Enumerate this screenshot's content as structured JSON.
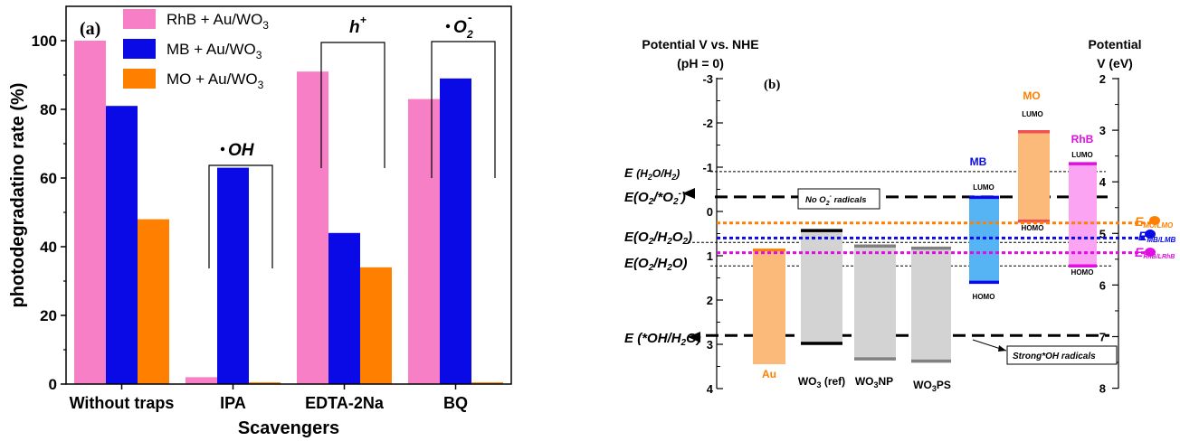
{
  "panel_a": {
    "label": "(a)",
    "ylabel": "photodegradatino rate (%)",
    "xlabel": "Scavengers",
    "annotations": [
      {
        "id": "oh",
        "text": "OH"
      },
      {
        "id": "h",
        "text": "h",
        "sup": "+"
      },
      {
        "id": "o2",
        "text": "O",
        "sub": "2",
        "sup": "-"
      }
    ]
  },
  "panel_b": {
    "label": "(b)",
    "left_axis_title_1": "Potential V vs. NHE",
    "left_axis_title_2": "(pH = 0)",
    "right_axis_title_1": "Potential",
    "right_axis_title_2": "V (eV)",
    "left_ticks": [
      "-3",
      "-2",
      "-1",
      "0",
      "1",
      "2",
      "3",
      "4"
    ],
    "right_ticks": [
      "2",
      "3",
      "4",
      "5",
      "6",
      "7",
      "8"
    ],
    "ref_labels": {
      "h2o_h2": {
        "pre": "E ",
        "main": "(H",
        "s1": "2",
        "mid": "O/H",
        "s2": "2",
        "post": ")"
      },
      "o2_o2r": {
        "pre": "E",
        "main": "(O",
        "s1": "2",
        "mid": "/*O",
        "s2": "2",
        "sup": "-",
        "post": ")"
      },
      "o2_h2o2": {
        "pre": "E",
        "main": "(O",
        "s1": "2",
        "mid": "/H",
        "s2": "2",
        "mid2": "O",
        "s3": "2",
        "post": ")"
      },
      "o2_h2o": {
        "pre": "E",
        "main": "(O",
        "s1": "2",
        "mid": "/H",
        "s2": "2",
        "post": "O)"
      },
      "oh_h2o": {
        "pre": "E ",
        "main": "(*OH/H",
        "s1": "2",
        "post": "O)"
      }
    },
    "box_no_o2": {
      "pre": "No O",
      "sub": "2",
      "sup": "-",
      "post": " radicals"
    },
    "box_oh": "Strong*OH radicals",
    "materials": [
      "Au",
      "WO3 (ref)",
      "WO3NP",
      "WO3PS"
    ],
    "material_labels": {
      "au": "Au",
      "ref": {
        "a": "WO",
        "s": "3",
        "b": " (ref)"
      },
      "np": {
        "a": "WO",
        "s": "3",
        "b": "NP"
      },
      "ps": {
        "a": "WO",
        "s": "3",
        "b": "PS"
      }
    },
    "dyes": {
      "mb": {
        "name": "MB",
        "lumo": "LUMO",
        "homo": "HOMO"
      },
      "mo": {
        "name": "MO",
        "lumo": "LUMO",
        "homo": "HOMO"
      },
      "rhb": {
        "name": "RhB",
        "lumo": "LUMO",
        "homo": "HOMO"
      }
    },
    "right_labels": {
      "mo": {
        "pre": "E",
        "sub": "MO/LMO"
      },
      "mb": {
        "pre": "E",
        "sub": "MB/LMB"
      },
      "rhb": {
        "pre": "E",
        "sub": "RhB/LRhB"
      }
    }
  },
  "chart_data": [
    {
      "type": "bar",
      "title": "(a)",
      "xlabel": "Scavengers",
      "ylabel": "photodegradatino rate (%)",
      "ylim": [
        0,
        110
      ],
      "categories": [
        "Without traps",
        "IPA",
        "EDTA-2Na",
        "BQ"
      ],
      "series": [
        {
          "name": "RhB + Au/WO3",
          "color": "#f77fc6",
          "values": [
            100,
            2,
            91,
            83
          ]
        },
        {
          "name": "MB + Au/WO3",
          "color": "#0a0ae6",
          "values": [
            81,
            63,
            44,
            89
          ]
        },
        {
          "name": "MO + Au/WO3",
          "color": "#ff8000",
          "values": [
            48,
            0.5,
            34,
            0.5
          ]
        }
      ],
      "legend": "top-left",
      "y_ticks": [
        0,
        20,
        40,
        60,
        80,
        100
      ]
    },
    {
      "type": "diagram",
      "title": "(b)",
      "left_axis": {
        "label": "Potential V vs. NHE (pH = 0)",
        "range": [
          -3,
          4
        ],
        "inverted": true
      },
      "right_axis": {
        "label": "Potential V (eV)",
        "range": [
          2,
          8
        ]
      },
      "reference_levels": [
        {
          "name": "E(H2O/H2)",
          "potential": -0.9
        },
        {
          "name": "E(O2/*O2-)",
          "potential": -0.33
        },
        {
          "name": "E(O2/H2O2)",
          "potential": 0.7
        },
        {
          "name": "E(O2/H2O)",
          "potential": 1.23
        },
        {
          "name": "E(*OH/H2O)",
          "potential": 2.8
        }
      ],
      "bands": [
        {
          "name": "Au",
          "color": "#fbb97a",
          "top": 0.87,
          "bottom": 3.45
        },
        {
          "name": "WO3 (ref)",
          "color": "#d3d3d3",
          "top": 0.43,
          "bottom": 2.98
        },
        {
          "name": "WO3NP",
          "color": "#d3d3d3",
          "top": 0.78,
          "bottom": 3.33
        },
        {
          "name": "WO3PS",
          "color": "#d3d3d3",
          "top": 0.83,
          "bottom": 3.38
        },
        {
          "name": "MB",
          "color": "#56b4f5",
          "lumo": -0.32,
          "homo": 1.6
        },
        {
          "name": "MO",
          "color": "#fbb97a",
          "lumo": -1.8,
          "homo": 0.22
        },
        {
          "name": "RhB",
          "color": "#fca4f4",
          "lumo": -1.08,
          "homo": 1.23
        }
      ],
      "dye_levels": [
        {
          "name": "E MO/LMO",
          "potential": 0.26,
          "color": "#ff8000"
        },
        {
          "name": "E MB/LMB",
          "potential": 0.6,
          "color": "#0a0ae6"
        },
        {
          "name": "E RhB/LRhB",
          "potential": 0.93,
          "color": "#e10ee1"
        }
      ]
    }
  ]
}
